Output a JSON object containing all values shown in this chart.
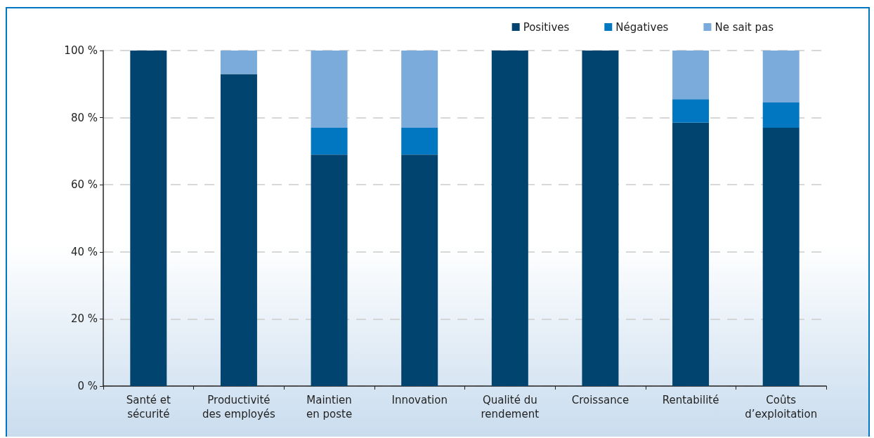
{
  "chart_data": {
    "type": "bar",
    "stacked": true,
    "categories": [
      "Santé et\nsécurité",
      "Productivité\ndes employés",
      "Maintien\nen poste",
      "Innovation",
      "Qualité du\nrendement",
      "Croissance",
      "Rentabilité",
      "Coûts\nd’exploitation"
    ],
    "series": [
      {
        "name": "Positives",
        "color": "#00446f",
        "values": [
          100,
          93,
          69,
          69,
          100,
          100,
          78.5,
          77
        ]
      },
      {
        "name": "Négatives",
        "color": "#0077c0",
        "values": [
          0,
          0,
          8,
          8,
          0,
          0,
          7,
          7.5
        ]
      },
      {
        "name": "Ne sait pas",
        "color": "#7aabdb",
        "values": [
          0,
          7,
          23,
          23,
          0,
          0,
          14.5,
          15.5
        ]
      }
    ],
    "ylim": [
      0,
      100
    ],
    "yticks": [
      {
        "value": 0,
        "label": "0 %"
      },
      {
        "value": 20,
        "label": "20 %"
      },
      {
        "value": 40,
        "label": "40 %"
      },
      {
        "value": 60,
        "label": "60 %"
      },
      {
        "value": 80,
        "label": "80 %"
      },
      {
        "value": 100,
        "label": "100 %"
      }
    ],
    "grid": "y",
    "legend": "top right"
  }
}
